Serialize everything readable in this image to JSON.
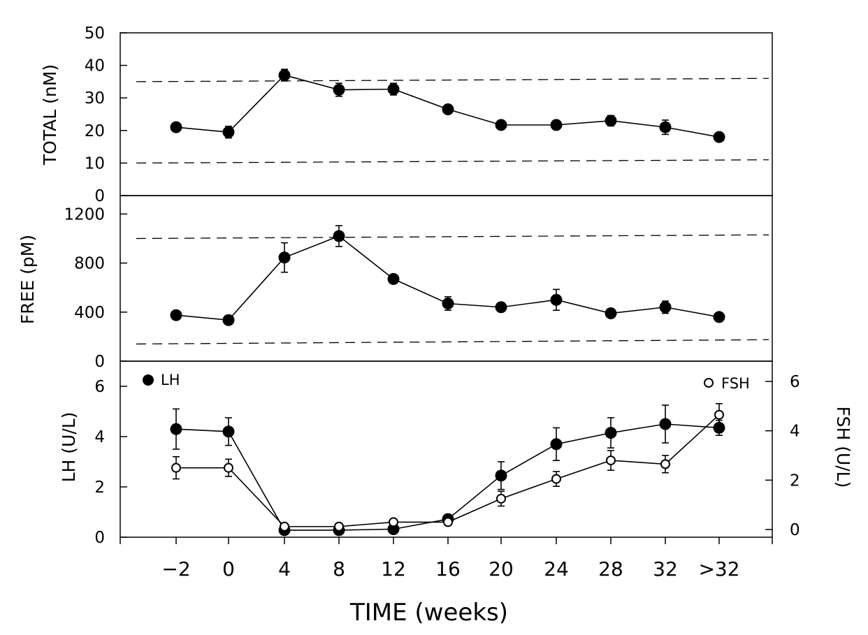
{
  "chart_data": [
    {
      "id": "total",
      "type": "line",
      "ylabel": "TOTAL (nM)",
      "ylim": [
        0,
        50
      ],
      "yticks": [
        0,
        10,
        20,
        30,
        40,
        50
      ],
      "reference_lines": [
        {
          "name": "upper-normal-limit",
          "from": 35,
          "to": 36
        },
        {
          "name": "lower-normal-limit",
          "from": 10,
          "to": 11
        }
      ],
      "series": [
        {
          "name": "TOTAL",
          "marker": "filled-circle",
          "values": [
            21,
            19.5,
            37,
            32.5,
            32.7,
            26.5,
            21.7,
            21.7,
            23,
            21,
            18
          ],
          "errors": [
            0.8,
            1.8,
            1.8,
            2,
            1.8,
            0.8,
            0.8,
            0.8,
            1.6,
            2.2,
            0.8
          ]
        }
      ]
    },
    {
      "id": "free",
      "type": "line",
      "ylabel": "FREE (pM)",
      "ylim": [
        0,
        1350
      ],
      "yticks": [
        0,
        400,
        800,
        1200
      ],
      "reference_lines": [
        {
          "name": "upper-normal-limit",
          "from": 1000,
          "to": 1030
        },
        {
          "name": "lower-normal-limit",
          "from": 140,
          "to": 175
        }
      ],
      "series": [
        {
          "name": "FREE",
          "marker": "filled-circle",
          "values": [
            375,
            335,
            845,
            1020,
            670,
            470,
            440,
            500,
            390,
            440,
            360
          ],
          "errors": [
            15,
            15,
            120,
            85,
            20,
            55,
            20,
            85,
            20,
            50,
            15
          ]
        }
      ]
    },
    {
      "id": "gonadotropins",
      "type": "line",
      "ylabel": "LH (U/L)",
      "ylabel_right": "FSH (U/L)",
      "ylim": [
        0,
        7
      ],
      "yticks": [
        0,
        2,
        4,
        6
      ],
      "ylim_right": [
        -0.2,
        6.6
      ],
      "yticks_right": [
        0,
        2,
        4,
        6
      ],
      "xlabel": "TIME (weeks)",
      "categories": [
        "−2",
        "0",
        "4",
        "8",
        "12",
        "16",
        "20",
        "24",
        "28",
        "32",
        ">32"
      ],
      "legend": [
        {
          "label": "LH",
          "marker": "filled-circle",
          "position": "top-left"
        },
        {
          "label": "FSH",
          "marker": "open-circle",
          "position": "top-right"
        }
      ],
      "series": [
        {
          "name": "LH",
          "axis": "left",
          "marker": "filled-circle",
          "values": [
            4.3,
            4.2,
            0.28,
            0.28,
            0.32,
            0.72,
            2.45,
            3.7,
            4.15,
            4.5,
            4.35
          ],
          "errors": [
            0.8,
            0.55,
            0.05,
            0.05,
            0.05,
            0.1,
            0.55,
            0.65,
            0.6,
            0.75,
            0.3
          ]
        },
        {
          "name": "FSH",
          "axis": "right",
          "marker": "open-circle",
          "values": [
            2.5,
            2.5,
            0.12,
            0.12,
            0.3,
            0.3,
            1.25,
            2.05,
            2.8,
            2.65,
            4.65
          ],
          "errors": [
            0.45,
            0.35,
            0.05,
            0.05,
            0.05,
            0.05,
            0.3,
            0.3,
            0.4,
            0.35,
            0.45
          ]
        }
      ]
    }
  ]
}
